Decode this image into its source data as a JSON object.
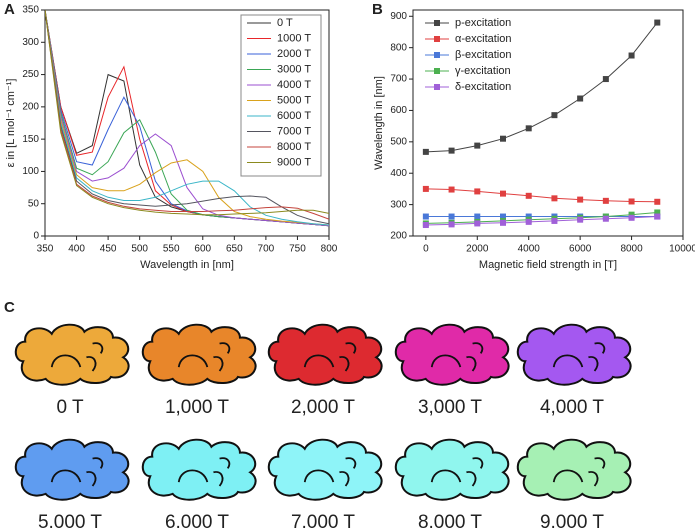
{
  "chart_data": [
    {
      "type": "line",
      "panel": "A",
      "xlabel": "Wavelength in [nm]",
      "ylabel": "ε in [L mol⁻¹ cm⁻¹]",
      "x": [
        350,
        375,
        400,
        425,
        450,
        475,
        500,
        525,
        550,
        575,
        600,
        625,
        650,
        675,
        700,
        725,
        750,
        775,
        800
      ],
      "xlim": [
        350,
        800
      ],
      "xticks": [
        350,
        400,
        450,
        500,
        550,
        600,
        650,
        700,
        750,
        800
      ],
      "ylim": [
        0,
        350
      ],
      "yticks": [
        0,
        50,
        100,
        150,
        200,
        250,
        300,
        350
      ],
      "legend": "upper right",
      "markers": false,
      "series": [
        {
          "name": "0 T",
          "color": "#333333",
          "values": [
            350,
            200,
            128,
            140,
            250,
            240,
            110,
            60,
            45,
            38,
            33,
            30,
            28,
            26,
            24,
            22,
            20,
            18,
            16
          ]
        },
        {
          "name": "1000 T",
          "color": "#e8262a",
          "values": [
            350,
            200,
            125,
            130,
            215,
            262,
            150,
            70,
            48,
            38,
            33,
            30,
            28,
            26,
            24,
            22,
            20,
            18,
            16
          ]
        },
        {
          "name": "2000 T",
          "color": "#3a62d8",
          "values": [
            350,
            195,
            115,
            110,
            165,
            215,
            170,
            85,
            50,
            39,
            33,
            30,
            28,
            26,
            24,
            22,
            20,
            18,
            16
          ]
        },
        {
          "name": "3000 T",
          "color": "#3aa655",
          "values": [
            350,
            190,
            105,
            95,
            115,
            160,
            180,
            130,
            65,
            40,
            33,
            30,
            28,
            26,
            24,
            22,
            20,
            18,
            16
          ]
        },
        {
          "name": "4000 T",
          "color": "#9b4fd0",
          "values": [
            350,
            185,
            100,
            85,
            90,
            105,
            140,
            158,
            140,
            75,
            42,
            32,
            28,
            26,
            24,
            22,
            20,
            18,
            16
          ]
        },
        {
          "name": "5000 T",
          "color": "#d9a21c",
          "values": [
            350,
            180,
            95,
            75,
            70,
            70,
            80,
            98,
            113,
            118,
            100,
            60,
            38,
            30,
            26,
            23,
            21,
            19,
            17
          ]
        },
        {
          "name": "6000 T",
          "color": "#3bb6c8",
          "values": [
            350,
            175,
            90,
            70,
            60,
            55,
            55,
            60,
            70,
            80,
            85,
            85,
            70,
            45,
            32,
            26,
            22,
            19,
            17
          ]
        },
        {
          "name": "7000 T",
          "color": "#55555f",
          "values": [
            350,
            170,
            85,
            65,
            55,
            50,
            48,
            46,
            48,
            50,
            54,
            58,
            61,
            62,
            60,
            45,
            32,
            24,
            19
          ]
        },
        {
          "name": "8000 T",
          "color": "#c4443c",
          "values": [
            350,
            165,
            80,
            62,
            52,
            46,
            42,
            40,
            38,
            38,
            38,
            39,
            40,
            42,
            44,
            45,
            43,
            35,
            26
          ]
        },
        {
          "name": "9000 T",
          "color": "#8b8a1e",
          "values": [
            350,
            160,
            78,
            60,
            50,
            44,
            40,
            37,
            35,
            34,
            33,
            33,
            34,
            35,
            36,
            38,
            40,
            40,
            35
          ]
        }
      ]
    },
    {
      "type": "line",
      "panel": "B",
      "xlabel": "Magnetic field strength in [T]",
      "ylabel": "Wavelength in [nm]",
      "x": [
        0,
        1000,
        2000,
        3000,
        4000,
        5000,
        6000,
        7000,
        8000,
        9000
      ],
      "xlim": [
        -500,
        10000
      ],
      "xticks": [
        0,
        2000,
        4000,
        6000,
        8000,
        10000
      ],
      "ylim": [
        200,
        920
      ],
      "yticks": [
        200,
        300,
        400,
        500,
        600,
        700,
        800,
        900
      ],
      "legend": "upper left",
      "markers": true,
      "series": [
        {
          "name": "p-excitation",
          "color": "#444444",
          "values": [
            468,
            472,
            488,
            510,
            543,
            585,
            638,
            700,
            775,
            880
          ]
        },
        {
          "name": "α-excitation",
          "color": "#e04040",
          "values": [
            350,
            348,
            342,
            335,
            328,
            320,
            316,
            312,
            310,
            309
          ]
        },
        {
          "name": "β-excitation",
          "color": "#4a78d8",
          "values": [
            262,
            262,
            262,
            262,
            262,
            262,
            262,
            262,
            262,
            262
          ]
        },
        {
          "name": "γ-excitation",
          "color": "#4cb050",
          "values": [
            240,
            242,
            245,
            248,
            252,
            255,
            258,
            262,
            268,
            275
          ]
        },
        {
          "name": "δ-excitation",
          "color": "#a060d8",
          "values": [
            235,
            237,
            240,
            242,
            245,
            248,
            252,
            255,
            258,
            262
          ]
        }
      ]
    }
  ],
  "panel_c": {
    "panel": "C",
    "items": [
      {
        "label": "0 T",
        "color": "#eda93a"
      },
      {
        "label": "1,000 T",
        "color": "#e8862a"
      },
      {
        "label": "2,000 T",
        "color": "#dd2a30"
      },
      {
        "label": "3,000 T",
        "color": "#e02aa8"
      },
      {
        "label": "4,000 T",
        "color": "#a458f0"
      },
      {
        "label": "5,000 T",
        "color": "#5f9cf0"
      },
      {
        "label": "6,000 T",
        "color": "#7ef0f4"
      },
      {
        "label": "7,000 T",
        "color": "#8ef4f8"
      },
      {
        "label": "8,000 T",
        "color": "#90f6ee"
      },
      {
        "label": "9,000 T",
        "color": "#a6f0b4"
      }
    ]
  }
}
